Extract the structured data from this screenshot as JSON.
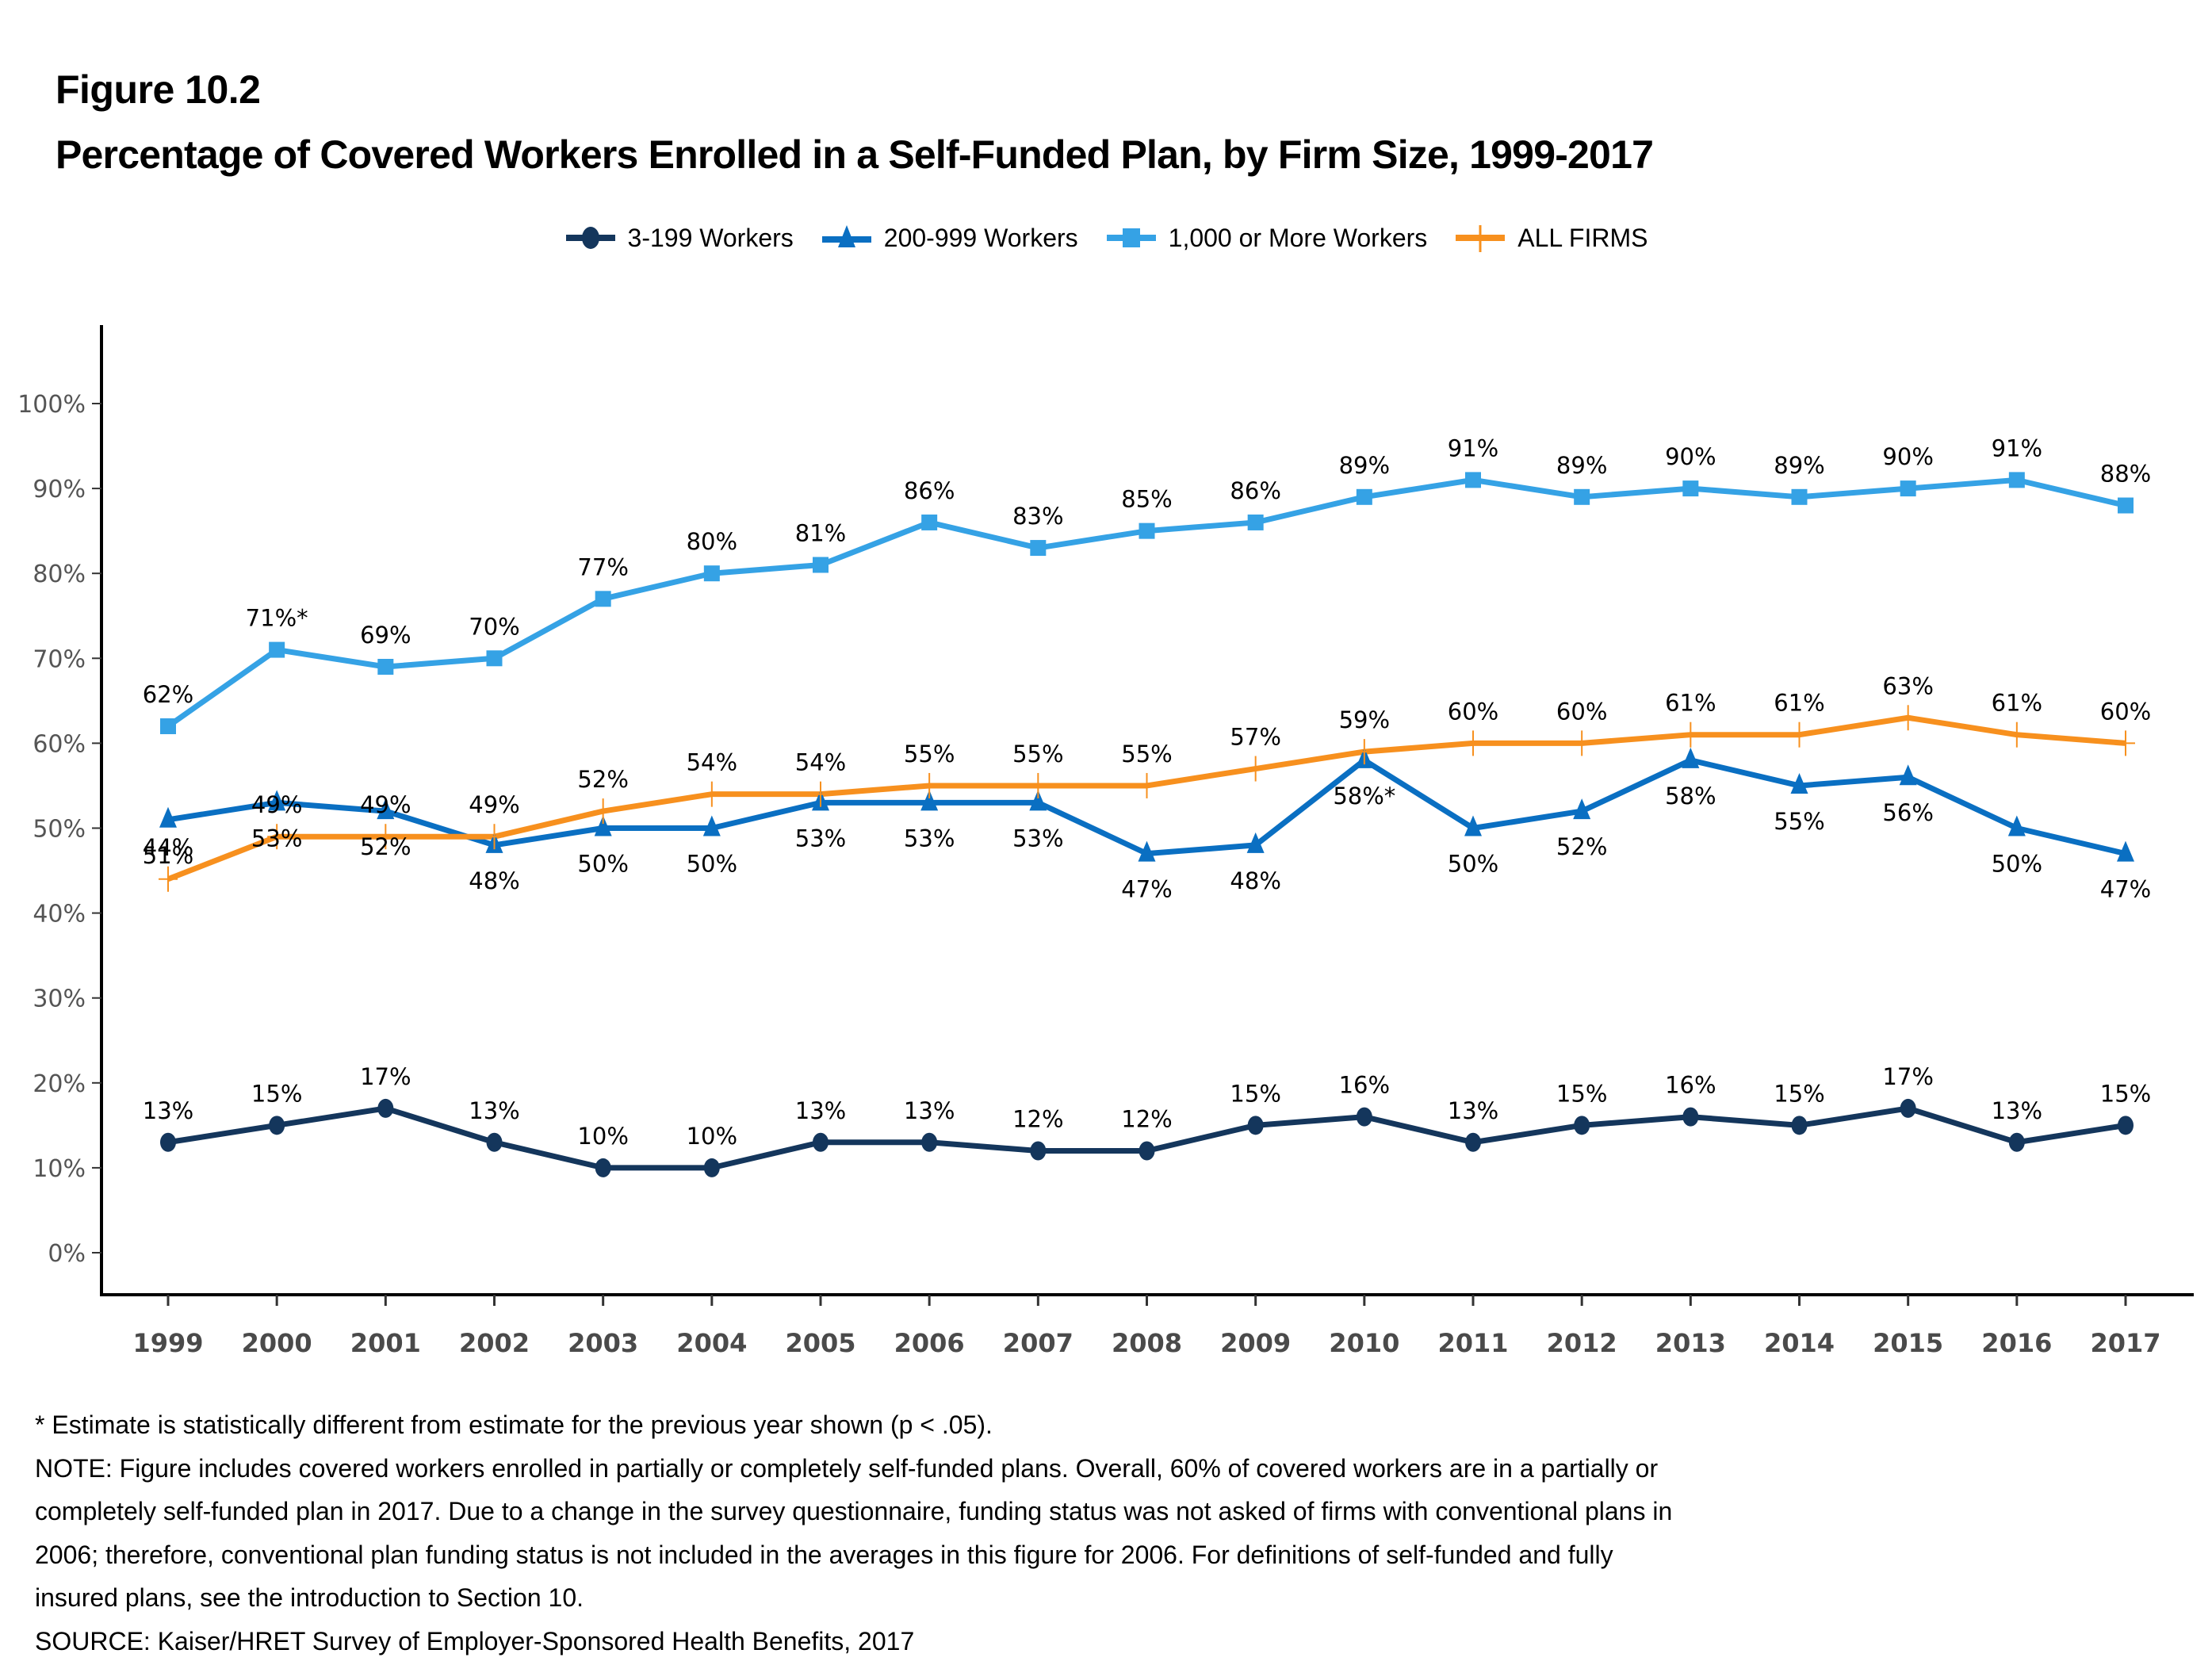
{
  "header": {
    "figure_label": "Figure 10.2",
    "title": "Percentage of Covered Workers Enrolled in a Self-Funded Plan, by Firm Size, 1999-2017"
  },
  "legend": [
    {
      "name": "3-199 Workers",
      "color": "#14365c",
      "marker": "circle"
    },
    {
      "name": "200-999 Workers",
      "color": "#0a6fc2",
      "marker": "triangle"
    },
    {
      "name": "1,000 or More Workers",
      "color": "#35a2e5",
      "marker": "square"
    },
    {
      "name": "ALL FIRMS",
      "color": "#f7901e",
      "marker": "plus"
    }
  ],
  "chart_data": {
    "type": "line",
    "title": "Percentage of Covered Workers Enrolled in a Self-Funded Plan, by Firm Size, 1999-2017",
    "xlabel": "",
    "ylabel": "",
    "ylim": [
      0,
      100
    ],
    "yticks": [
      "0%",
      "10%",
      "20%",
      "30%",
      "40%",
      "50%",
      "60%",
      "70%",
      "80%",
      "90%",
      "100%"
    ],
    "grid": false,
    "legend_position": "top-center",
    "x": [
      "1999",
      "2000",
      "2001",
      "2002",
      "2003",
      "2004",
      "2005",
      "2006",
      "2007",
      "2008",
      "2009",
      "2010",
      "2011",
      "2012",
      "2013",
      "2014",
      "2015",
      "2016",
      "2017"
    ],
    "series": [
      {
        "name": "3-199 Workers",
        "color": "#14365c",
        "marker": "circle",
        "values": [
          13,
          15,
          17,
          13,
          10,
          10,
          13,
          13,
          12,
          12,
          15,
          16,
          13,
          15,
          16,
          15,
          17,
          13,
          15
        ],
        "labels": [
          "13%",
          "15%",
          "17%",
          "13%",
          "10%",
          "10%",
          "13%",
          "13%",
          "12%",
          "12%",
          "15%",
          "16%",
          "13%",
          "15%",
          "16%",
          "15%",
          "17%",
          "13%",
          "15%"
        ],
        "label_position": "above"
      },
      {
        "name": "200-999 Workers",
        "color": "#0a6fc2",
        "marker": "triangle",
        "values": [
          51,
          53,
          52,
          48,
          50,
          50,
          53,
          53,
          53,
          47,
          48,
          58,
          50,
          52,
          58,
          55,
          56,
          50,
          47
        ],
        "labels": [
          "51%",
          "53%",
          "52%",
          "48%",
          "50%",
          "50%",
          "53%",
          "53%",
          "53%",
          "47%",
          "48%",
          "58%*",
          "50%",
          "52%",
          "58%",
          "55%",
          "56%",
          "50%",
          "47%"
        ],
        "label_position": "below"
      },
      {
        "name": "1,000 or More Workers",
        "color": "#35a2e5",
        "marker": "square",
        "values": [
          62,
          71,
          69,
          70,
          77,
          80,
          81,
          86,
          83,
          85,
          86,
          89,
          91,
          89,
          90,
          89,
          90,
          91,
          88
        ],
        "labels": [
          "62%",
          "71%*",
          "69%",
          "70%",
          "77%",
          "80%",
          "81%",
          "86%",
          "83%",
          "85%",
          "86%",
          "89%",
          "91%",
          "89%",
          "90%",
          "89%",
          "90%",
          "91%",
          "88%"
        ],
        "label_position": "above"
      },
      {
        "name": "ALL FIRMS",
        "color": "#f7901e",
        "marker": "plus",
        "values": [
          44,
          49,
          49,
          49,
          52,
          54,
          54,
          55,
          55,
          55,
          57,
          59,
          60,
          60,
          61,
          61,
          63,
          61,
          60
        ],
        "labels": [
          "44%",
          "49%",
          "49%",
          "49%",
          "52%",
          "54%",
          "54%",
          "55%",
          "55%",
          "55%",
          "57%",
          "59%",
          "60%",
          "60%",
          "61%",
          "61%",
          "63%",
          "61%",
          "60%"
        ],
        "label_position": "above"
      }
    ]
  },
  "notes": [
    "* Estimate is statistically different from estimate for the previous year shown (p < .05).",
    "NOTE: Figure includes covered workers enrolled in partially or completely self-funded plans. Overall, 60% of covered workers are in a partially or",
    "completely self-funded plan in 2017. Due to a change in the survey questionnaire, funding status was not asked of firms with conventional plans in",
    "2006; therefore, conventional plan funding status is not included in the averages in this figure for 2006. For definitions of self-funded and fully",
    "insured plans, see the introduction to Section 10.",
    "SOURCE: Kaiser/HRET Survey of Employer-Sponsored Health Benefits, 2017"
  ]
}
